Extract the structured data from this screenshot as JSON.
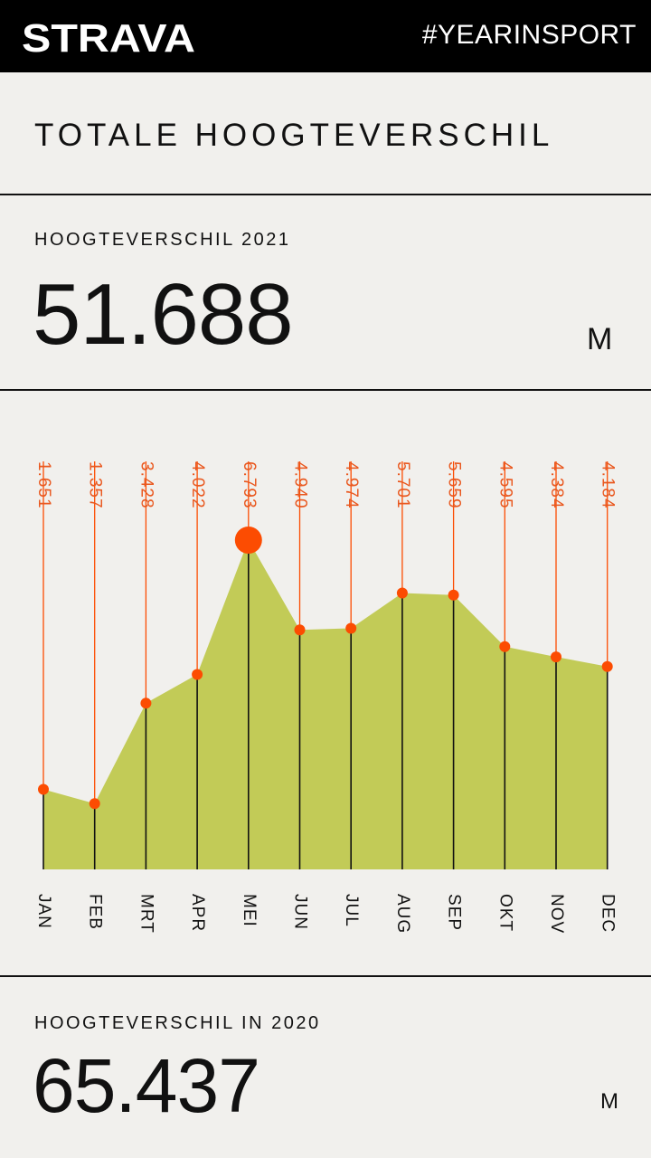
{
  "header": {
    "brand": "STRAVA",
    "hashtag": "#YEARINSPORT"
  },
  "title": "TOTALE HOOGTEVERSCHIL",
  "current": {
    "label": "HOOGTEVERSCHIL 2021",
    "value": "51.688",
    "unit": "M"
  },
  "previous": {
    "label": "HOOGTEVERSCHIL IN 2020",
    "value": "65.437",
    "unit": "M"
  },
  "colors": {
    "fill": "#c2cb57",
    "marker": "#fc4c02",
    "label": "#e9581f"
  },
  "chart_data": {
    "type": "area",
    "categories": [
      "JAN",
      "FEB",
      "MRT",
      "APR",
      "MEI",
      "JUN",
      "JUL",
      "AUG",
      "SEP",
      "OKT",
      "NOV",
      "DEC"
    ],
    "values": [
      1651,
      1357,
      3428,
      4022,
      6793,
      4940,
      4974,
      5701,
      5659,
      4595,
      4384,
      4184
    ],
    "value_labels": [
      "1.651",
      "1.357",
      "3.428",
      "4.022",
      "6.793",
      "4.940",
      "4.974",
      "5.701",
      "5.659",
      "4.595",
      "4.384",
      "4.184"
    ],
    "highlight_index": 4,
    "ylim": [
      0,
      6793
    ]
  }
}
